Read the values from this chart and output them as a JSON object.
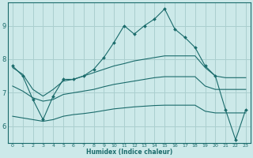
{
  "xlabel": "Humidex (Indice chaleur)",
  "bg_color": "#cce9e9",
  "grid_color": "#aacfcf",
  "line_color": "#1a6b6b",
  "xlim": [
    -0.5,
    23.5
  ],
  "ylim": [
    5.5,
    9.7
  ],
  "yticks": [
    6,
    7,
    8,
    9
  ],
  "xticks": [
    0,
    1,
    2,
    3,
    4,
    5,
    6,
    7,
    8,
    9,
    10,
    11,
    12,
    13,
    14,
    15,
    16,
    17,
    18,
    19,
    20,
    21,
    22,
    23
  ],
  "series": {
    "main": {
      "x": [
        0,
        1,
        2,
        3,
        4,
        5,
        6,
        7,
        8,
        9,
        10,
        11,
        12,
        13,
        14,
        15,
        16,
        17,
        18,
        19,
        20,
        21,
        22,
        23
      ],
      "y": [
        7.8,
        7.5,
        6.8,
        6.2,
        6.9,
        7.4,
        7.4,
        7.5,
        7.7,
        8.05,
        8.5,
        9.0,
        8.75,
        9.0,
        9.2,
        9.5,
        8.9,
        8.65,
        8.35,
        7.8,
        7.5,
        6.5,
        5.6,
        6.5
      ]
    },
    "upper_band": {
      "x": [
        0,
        1,
        2,
        3,
        4,
        5,
        6,
        7,
        8,
        9,
        10,
        11,
        12,
        13,
        14,
        15,
        16,
        17,
        18,
        19,
        20,
        21,
        22,
        23
      ],
      "y": [
        7.75,
        7.55,
        7.1,
        6.9,
        7.1,
        7.35,
        7.4,
        7.5,
        7.6,
        7.7,
        7.8,
        7.87,
        7.95,
        8.0,
        8.05,
        8.1,
        8.1,
        8.1,
        8.1,
        7.75,
        7.5,
        7.45,
        7.45,
        7.45
      ]
    },
    "mid_band": {
      "x": [
        0,
        1,
        2,
        3,
        4,
        5,
        6,
        7,
        8,
        9,
        10,
        11,
        12,
        13,
        14,
        15,
        16,
        17,
        18,
        19,
        20,
        21,
        22,
        23
      ],
      "y": [
        7.2,
        7.05,
        6.85,
        6.75,
        6.8,
        6.95,
        7.0,
        7.05,
        7.1,
        7.18,
        7.25,
        7.3,
        7.35,
        7.4,
        7.45,
        7.48,
        7.48,
        7.48,
        7.48,
        7.2,
        7.1,
        7.1,
        7.1,
        7.1
      ]
    },
    "lower_band": {
      "x": [
        0,
        1,
        2,
        3,
        4,
        5,
        6,
        7,
        8,
        9,
        10,
        11,
        12,
        13,
        14,
        15,
        16,
        17,
        18,
        19,
        20,
        21,
        22,
        23
      ],
      "y": [
        6.3,
        6.25,
        6.2,
        6.15,
        6.2,
        6.3,
        6.35,
        6.38,
        6.42,
        6.47,
        6.52,
        6.55,
        6.58,
        6.6,
        6.62,
        6.63,
        6.63,
        6.63,
        6.63,
        6.45,
        6.4,
        6.4,
        6.4,
        6.4
      ]
    }
  }
}
